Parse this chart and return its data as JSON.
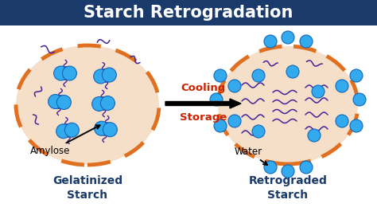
{
  "title": "Starch Retrogradation",
  "title_bg": "#1a3a6b",
  "title_color": "#ffffff",
  "bg_color": "#ffffff",
  "circle_fill": "#f5dfc8",
  "circle_edge": "#e07020",
  "circle_edge_width": 3.5,
  "cooling_text_line1": "Cooling",
  "cooling_text_line2": "Storage",
  "cooling_color": "#cc2200",
  "label_left": "Gelatinized\nStarch",
  "label_right": "Retrograded\nStarch",
  "amylose_label": "Amylose",
  "water_label": "Water",
  "amylose_color": "#442299",
  "water_color": "#33aaee",
  "granule_color": "#33aaee",
  "granule_edge": "#1166bb",
  "label_fontsize": 10,
  "sub_fontsize": 8.5,
  "title_fontsize": 15
}
